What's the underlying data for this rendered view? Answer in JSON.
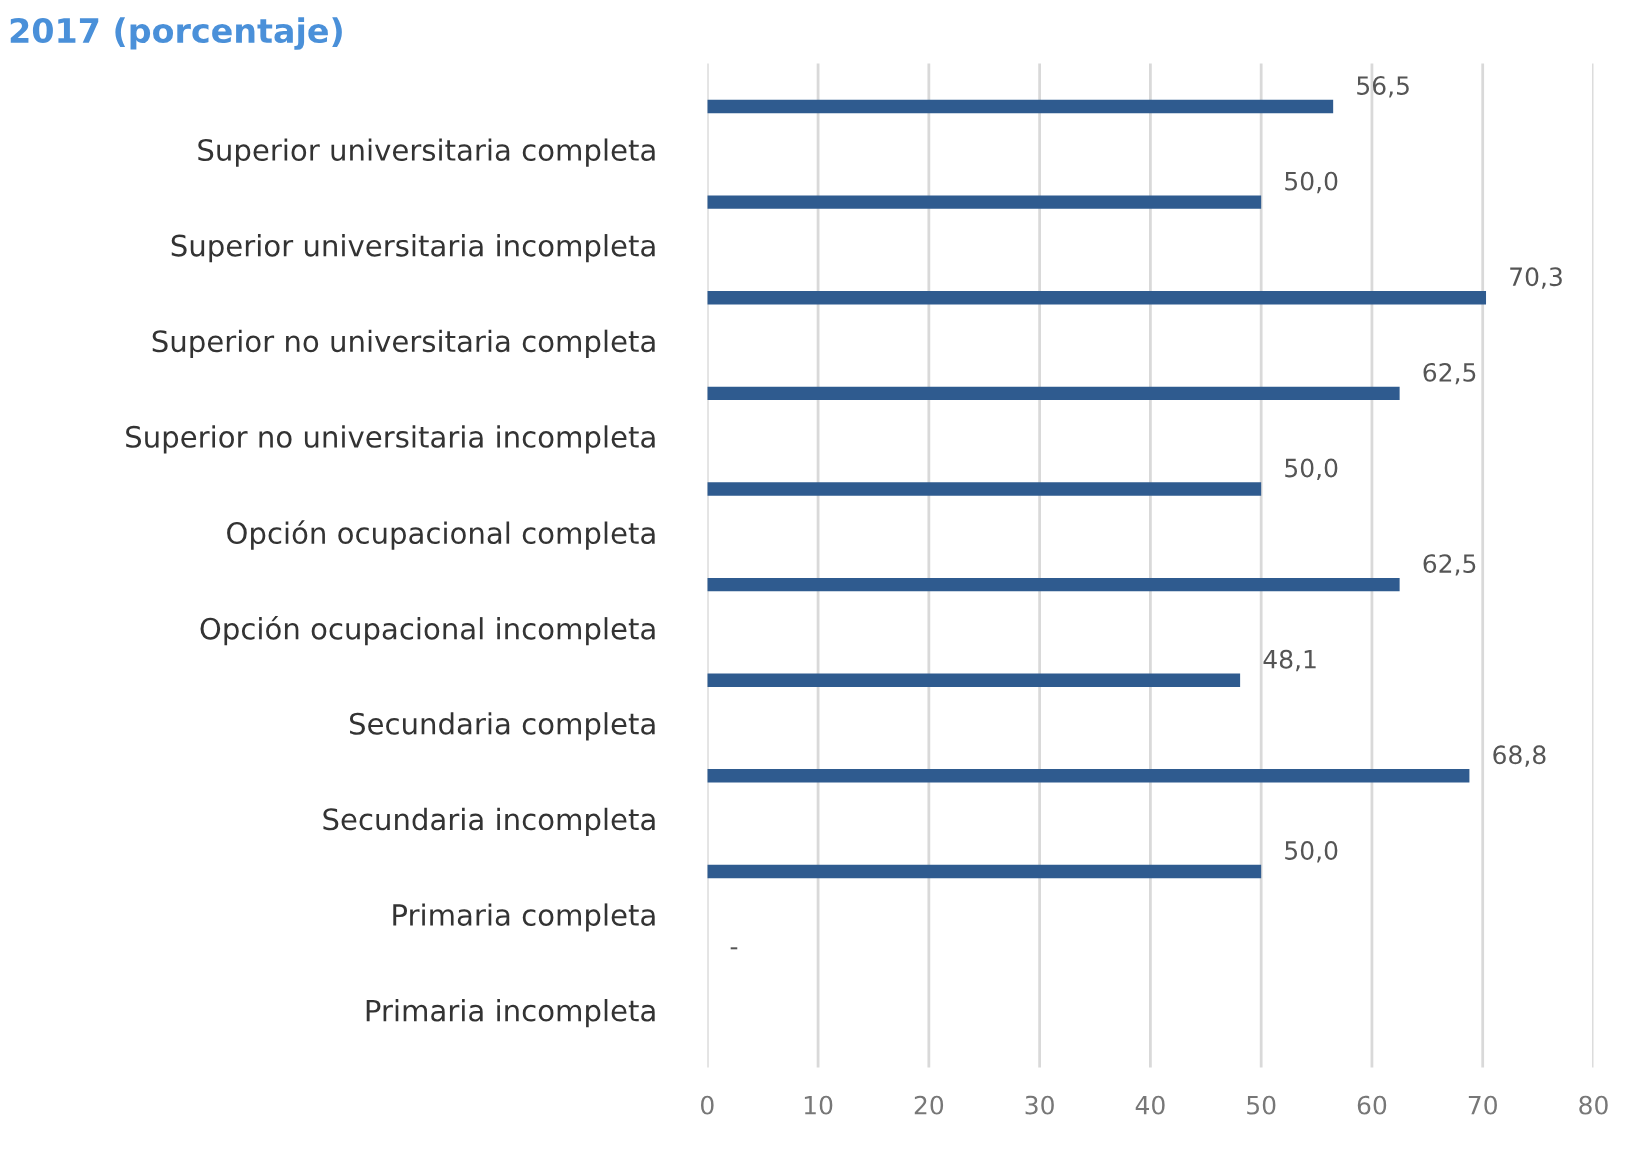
{
  "chart_data": {
    "type": "bar",
    "orientation": "horizontal",
    "title": "2017 (porcentaje)",
    "categories": [
      "Superior universitaria completa",
      "Superior universitaria incompleta",
      "Superior no universitaria completa",
      "Superior no universitaria incompleta",
      "Opción ocupacional completa",
      "Opción ocupacional incompleta",
      "Secundaria completa",
      "Secundaria incompleta",
      "Primaria completa",
      "Primaria incompleta"
    ],
    "values": [
      56.5,
      50.0,
      70.3,
      62.5,
      50.0,
      62.5,
      48.1,
      68.8,
      50.0,
      null
    ],
    "value_labels": [
      "56,5",
      "50,0",
      "70,3",
      "62,5",
      "50,0",
      "62,5",
      "48,1",
      "68,8",
      "50,0",
      "-"
    ],
    "color": "#2f5b8f",
    "xlim": [
      0,
      80
    ],
    "xticks": [
      0,
      10,
      20,
      30,
      40,
      50,
      60,
      70,
      80
    ],
    "grid": "x",
    "legend": false
  }
}
